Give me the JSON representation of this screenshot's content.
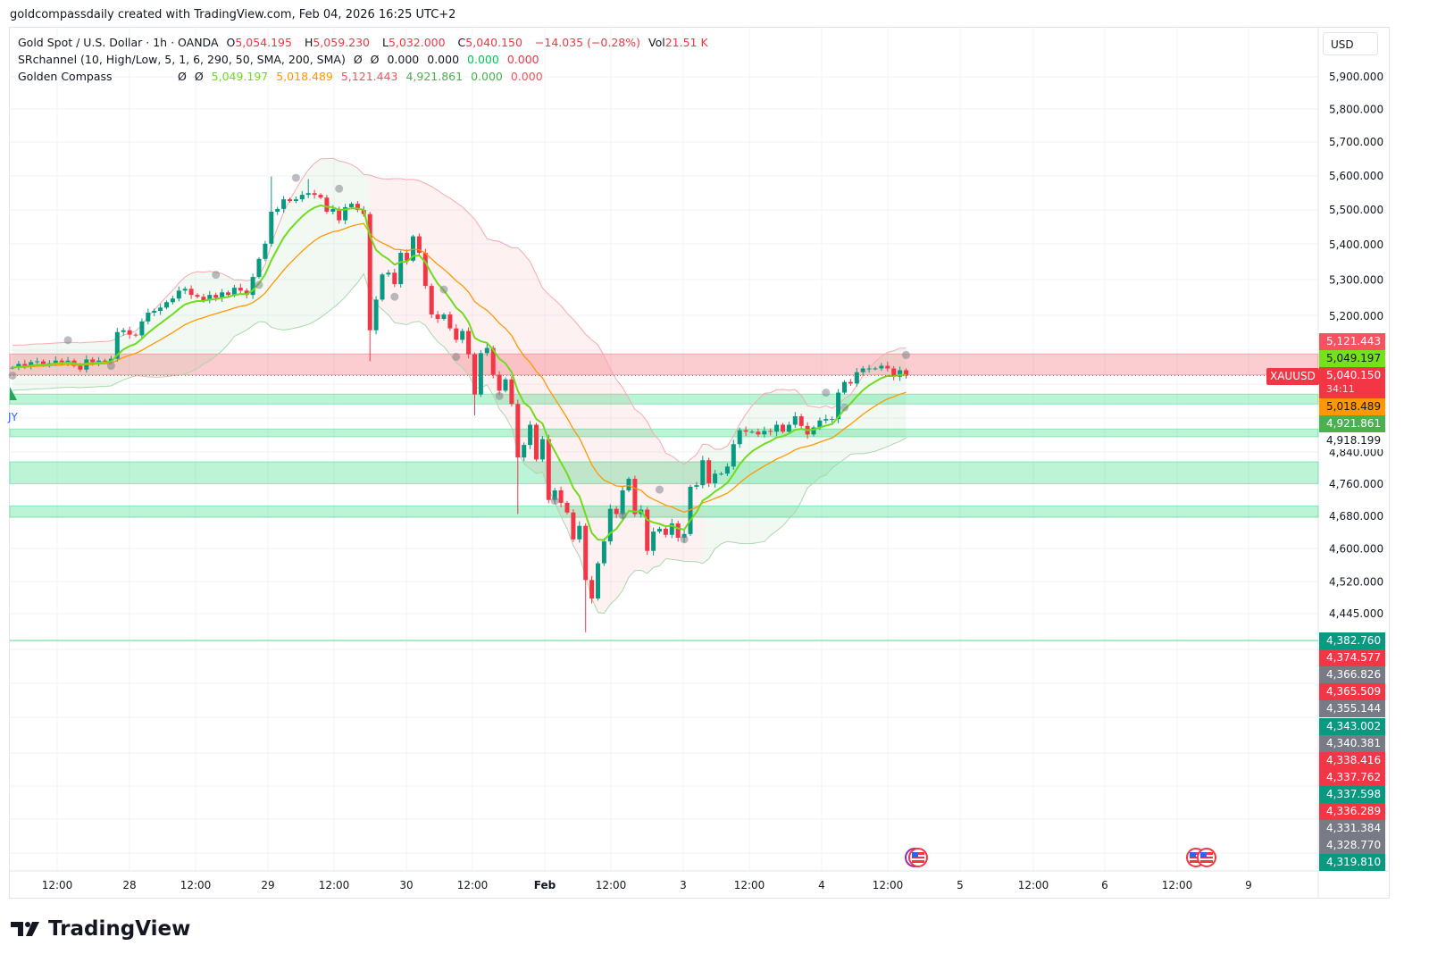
{
  "caption": "goldcompassdaily created with TradingView.com, Feb 04, 2026 16:25 UTC+2",
  "legend": {
    "symbol": "Gold Spot / U.S. Dollar · 1h · OANDA",
    "o_label": "O",
    "o": "5,054.195",
    "h_label": "H",
    "h": "5,059.230",
    "l_label": "L",
    "l": "5,032.000",
    "c_label": "C",
    "c": "5,040.150",
    "change": "−14.035 (−0.28%)",
    "vol_label": "Vol",
    "vol": "21.51 K",
    "ind1_name": "SRchannel (10, High/Low, 5, 1, 6, 290, 50, SMA, 200, SMA)",
    "ind1_vals": [
      "Ø",
      "Ø",
      "0.000",
      "0.000",
      "0.000",
      "0.000"
    ],
    "ind2_name": "Golden Compass",
    "ind2_vals": [
      "Ø",
      "Ø",
      "5,049.197",
      "5,018.489",
      "5,121.443",
      "4,921.861",
      "0.000",
      "0.000"
    ]
  },
  "currency": "USD",
  "symbol_tag": "XAUUSD",
  "countdown": "34:11",
  "buy_label": "JY",
  "brand": "TradingView",
  "colors": {
    "up": "#089981",
    "down": "#f23645",
    "fast": "#6fdc1e",
    "slow": "#ff9800",
    "upper": "#f7a9ae",
    "lower": "#a9d8ab"
  },
  "price_badges": [
    {
      "text": "5,121.443",
      "bg": "#f7525f",
      "fg": "#ffffff"
    },
    {
      "text": "5,049.197",
      "bg": "#76e01b",
      "fg": "#131722"
    },
    {
      "text": "5,040.150",
      "bg": "#f23645",
      "fg": "#ffffff"
    },
    {
      "text": "5,018.489",
      "bg": "#ff9800",
      "fg": "#131722"
    },
    {
      "text": "4,921.861",
      "bg": "#4caf50",
      "fg": "#ffffff"
    },
    {
      "text": "4,918.199",
      "bg": "#ffffff",
      "fg": "#131722"
    }
  ],
  "stack_badges": [
    {
      "text": "4,382.760",
      "bg": "#089981"
    },
    {
      "text": "4,374.577",
      "bg": "#f23645"
    },
    {
      "text": "4,366.826",
      "bg": "#787b86"
    },
    {
      "text": "4,365.509",
      "bg": "#f23645"
    },
    {
      "text": "4,355.144",
      "bg": "#787b86"
    },
    {
      "text": "4,343.002",
      "bg": "#089981"
    },
    {
      "text": "4,340.381",
      "bg": "#787b86"
    },
    {
      "text": "4,338.416",
      "bg": "#f23645"
    },
    {
      "text": "4,337.762",
      "bg": "#f23645"
    },
    {
      "text": "4,337.598",
      "bg": "#089981"
    },
    {
      "text": "4,336.289",
      "bg": "#f23645"
    },
    {
      "text": "4,331.384",
      "bg": "#787b86"
    },
    {
      "text": "4,328.770",
      "bg": "#787b86"
    },
    {
      "text": "4,319.810",
      "bg": "#089981"
    }
  ],
  "chart_data": {
    "type": "candlestick",
    "title": "Gold Spot / U.S. Dollar · 1h · OANDA",
    "y_scale": "log",
    "ylim": [
      4300,
      5950
    ],
    "grid": true,
    "y_ticks": [
      5900,
      5800,
      5700,
      5600,
      5500,
      5400,
      5300,
      5200,
      4840,
      4760,
      4680,
      4600,
      4520,
      4445
    ],
    "y_tick_labels": [
      "5,900.000",
      "5,800.000",
      "5,700.000",
      "5,600.000",
      "5,500.000",
      "5,400.000",
      "5,300.000",
      "5,200.000",
      "4,840.000",
      "4,760.000",
      "4,680.000",
      "4,600.000",
      "4,520.000",
      "4,445.000"
    ],
    "x_tick_labels": [
      "12:00",
      "28",
      "12:00",
      "29",
      "12:00",
      "30",
      "12:00",
      "Feb",
      "12:00",
      "3",
      "12:00",
      "4",
      "12:00",
      "5",
      "12:00",
      "6",
      "12:00",
      "9"
    ],
    "first_open": 5061,
    "close": [
      5061,
      5071,
      5066,
      5076,
      5078,
      5068,
      5073,
      5080,
      5076,
      5080,
      5066,
      5056,
      5083,
      5076,
      5080,
      5078,
      5085,
      5157,
      5162,
      5150,
      5148,
      5186,
      5210,
      5215,
      5224,
      5239,
      5249,
      5271,
      5276,
      5259,
      5254,
      5244,
      5259,
      5251,
      5266,
      5259,
      5279,
      5271,
      5259,
      5309,
      5360,
      5403,
      5495,
      5503,
      5531,
      5526,
      5531,
      5544,
      5549,
      5544,
      5536,
      5495,
      5503,
      5470,
      5508,
      5518,
      5500,
      5488,
      5162,
      5246,
      5316,
      5321,
      5289,
      5377,
      5355,
      5424,
      5377,
      5284,
      5205,
      5193,
      5205,
      5167,
      5136,
      5160,
      5097,
      4990,
      5100,
      5114,
      5042,
      5000,
      5030,
      4965,
      4827,
      4859,
      4911,
      4822,
      4874,
      4720,
      4744,
      4713,
      4689,
      4623,
      4656,
      4525,
      4481,
      4565,
      4618,
      4698,
      4685,
      4744,
      4773,
      4685,
      4696,
      4595,
      4642,
      4649,
      4634,
      4662,
      4627,
      4636,
      4753,
      4757,
      4820,
      4762,
      4786,
      4786,
      4804,
      4861,
      4897,
      4893,
      4893,
      4886,
      4895,
      4893,
      4911,
      4893,
      4911,
      4933,
      4908,
      4886,
      4904,
      4922,
      4926,
      4926,
      4995,
      5023,
      5019,
      5049,
      5059,
      5059,
      5059,
      5066,
      5059,
      5037,
      5054.195,
      5040.15
    ],
    "wick_overrides": [
      {
        "index": 42,
        "high": 5598
      },
      {
        "index": 48,
        "high": 5590
      },
      {
        "index": 58,
        "low": 5078
      },
      {
        "index": 75,
        "low": 4935
      },
      {
        "index": 82,
        "low": 4685
      },
      {
        "index": 93,
        "low": 4402
      },
      {
        "index": 145,
        "high": 5059.23,
        "low": 5032.0
      }
    ],
    "pivot_markers": [
      {
        "index": 0,
        "price": 5040
      },
      {
        "index": 9,
        "price": 5135
      },
      {
        "index": 16,
        "price": 5066
      },
      {
        "index": 33,
        "price": 5315
      },
      {
        "index": 40,
        "price": 5287
      },
      {
        "index": 46,
        "price": 5594
      },
      {
        "index": 53,
        "price": 5562
      },
      {
        "index": 62,
        "price": 5254
      },
      {
        "index": 70,
        "price": 5274
      },
      {
        "index": 72,
        "price": 5090
      },
      {
        "index": 79,
        "price": 4986
      },
      {
        "index": 88,
        "price": 4718
      },
      {
        "index": 99,
        "price": 4682
      },
      {
        "index": 105,
        "price": 4746
      },
      {
        "index": 109,
        "price": 4623
      },
      {
        "index": 132,
        "price": 4995
      },
      {
        "index": 135,
        "price": 4956
      },
      {
        "index": 145,
        "price": 5095
      }
    ],
    "resistance_zones": [
      [
        5042,
        5098
      ]
    ],
    "support_zones": [
      [
        4965,
        4991
      ],
      [
        4880,
        4900
      ],
      [
        4761,
        4816
      ],
      [
        4677,
        4705
      ]
    ],
    "support_line": 4382.76,
    "last_price": 5040.15,
    "event_flags": [
      "US",
      "US",
      "US"
    ]
  }
}
